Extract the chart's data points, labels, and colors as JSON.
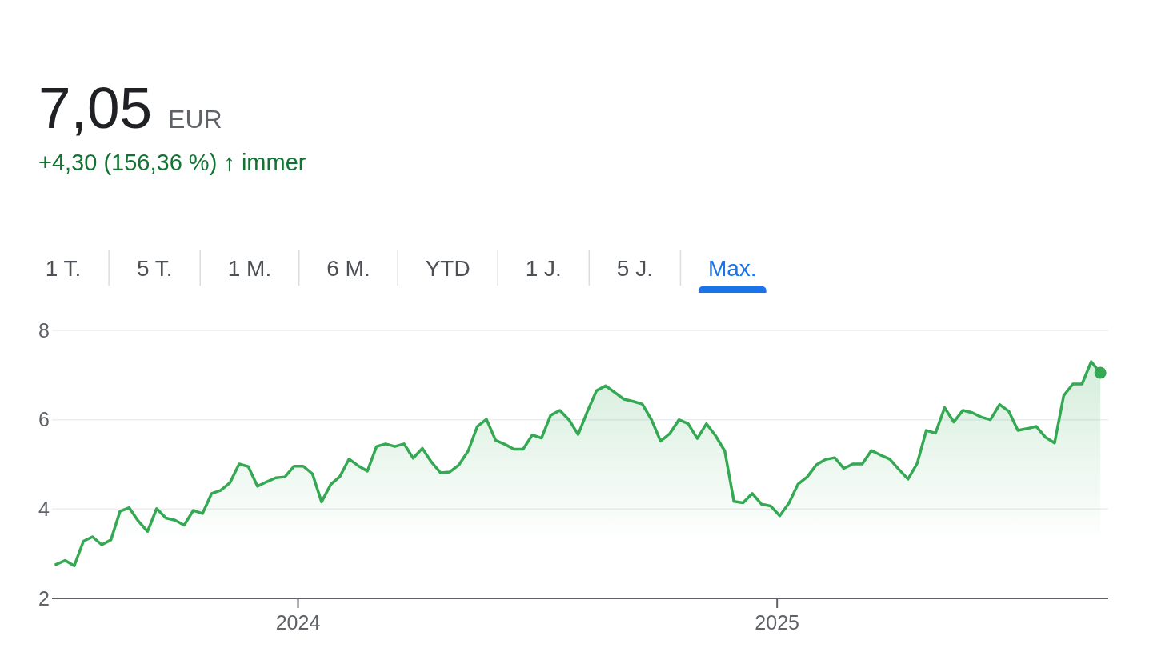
{
  "chart_data": {
    "type": "area",
    "title": "7,05 EUR",
    "subtitle": "+4,30 (156,36 %) ↑ immer",
    "annotations": [
      "1 T.",
      "5 T.",
      "1 M.",
      "6 M.",
      "YTD",
      "1 J.",
      "5 J.",
      "Max."
    ],
    "x": [
      "2023-06-30",
      "2023-07-07",
      "2023-07-14",
      "2023-07-21",
      "2023-07-28",
      "2023-08-04",
      "2023-08-11",
      "2023-08-18",
      "2023-08-25",
      "2023-09-01",
      "2023-09-08",
      "2023-09-15",
      "2023-09-22",
      "2023-09-29",
      "2023-10-06",
      "2023-10-13",
      "2023-10-20",
      "2023-10-27",
      "2023-11-03",
      "2023-11-10",
      "2023-11-17",
      "2023-11-24",
      "2023-12-01",
      "2023-12-08",
      "2023-12-15",
      "2023-12-22",
      "2023-12-29",
      "2024-01-05",
      "2024-01-12",
      "2024-01-19",
      "2024-01-26",
      "2024-02-02",
      "2024-02-09",
      "2024-02-16",
      "2024-02-23",
      "2024-03-01",
      "2024-03-08",
      "2024-03-15",
      "2024-03-22",
      "2024-03-29",
      "2024-04-05",
      "2024-04-12",
      "2024-04-19",
      "2024-04-26",
      "2024-05-03",
      "2024-05-10",
      "2024-05-17",
      "2024-05-24",
      "2024-05-31",
      "2024-06-07",
      "2024-06-14",
      "2024-06-21",
      "2024-06-28",
      "2024-07-05",
      "2024-07-12",
      "2024-07-19",
      "2024-07-26",
      "2024-08-02",
      "2024-08-09",
      "2024-08-16",
      "2024-08-23",
      "2024-08-30",
      "2024-09-06",
      "2024-09-13",
      "2024-09-20",
      "2024-09-27",
      "2024-10-04",
      "2024-10-11",
      "2024-10-18",
      "2024-10-25",
      "2024-11-01",
      "2024-11-08",
      "2024-11-15",
      "2024-11-22",
      "2024-11-29",
      "2024-12-06",
      "2024-12-13",
      "2024-12-20",
      "2024-12-27",
      "2025-01-03",
      "2025-01-10",
      "2025-01-17",
      "2025-01-24",
      "2025-01-31",
      "2025-02-07",
      "2025-02-14",
      "2025-02-21",
      "2025-02-28",
      "2025-03-07",
      "2025-03-14",
      "2025-03-21",
      "2025-03-28",
      "2025-04-04",
      "2025-04-11",
      "2025-04-18",
      "2025-04-25",
      "2025-05-02",
      "2025-05-09",
      "2025-05-16",
      "2025-05-23",
      "2025-05-30",
      "2025-06-06",
      "2025-06-13",
      "2025-06-20",
      "2025-06-27",
      "2025-07-04",
      "2025-07-11",
      "2025-07-18",
      "2025-07-25",
      "2025-08-01",
      "2025-08-08",
      "2025-08-15",
      "2025-08-22",
      "2025-08-29",
      "2025-09-05"
    ],
    "series": [
      {
        "color": "#34a853",
        "values": [
          2.76,
          2.85,
          2.73,
          3.28,
          3.38,
          3.2,
          3.31,
          3.95,
          4.03,
          3.73,
          3.5,
          4.01,
          3.8,
          3.75,
          3.64,
          3.97,
          3.9,
          4.35,
          4.42,
          4.59,
          5.01,
          4.95,
          4.51,
          4.61,
          4.7,
          4.72,
          4.96,
          4.96,
          4.79,
          4.16,
          4.55,
          4.73,
          5.12,
          4.97,
          4.85,
          5.4,
          5.46,
          5.4,
          5.46,
          5.14,
          5.36,
          5.05,
          4.81,
          4.83,
          4.99,
          5.3,
          5.85,
          6.01,
          5.54,
          5.45,
          5.34,
          5.34,
          5.66,
          5.59,
          6.1,
          6.21,
          6.0,
          5.67,
          6.18,
          6.65,
          6.76,
          6.61,
          6.46,
          6.41,
          6.35,
          6.0,
          5.52,
          5.69,
          6.0,
          5.91,
          5.58,
          5.91,
          5.64,
          5.3,
          4.17,
          4.14,
          4.35,
          4.11,
          4.07,
          3.85,
          4.13,
          4.56,
          4.72,
          4.99,
          5.11,
          5.15,
          4.91,
          5.01,
          5.01,
          5.31,
          5.21,
          5.12,
          4.89,
          4.67,
          5.02,
          5.76,
          5.7,
          6.27,
          5.95,
          6.21,
          6.16,
          6.06,
          6.0,
          6.34,
          6.19,
          5.76,
          5.8,
          5.85,
          5.61,
          5.48,
          6.54,
          6.8,
          6.8,
          7.3,
          7.05
        ]
      },
      {
        "type": "scatter",
        "color": "#34a853",
        "x": [
          "2025-09-05"
        ],
        "values": [
          7.05
        ]
      }
    ],
    "xlim": [
      "2023-06-27",
      "2025-09-11"
    ],
    "xticks": [
      {
        "value": "2024-01-01",
        "label": "2024"
      },
      {
        "value": "2025-01-01",
        "label": "2025"
      }
    ],
    "ylim": [
      2,
      8
    ],
    "yticks": [
      2,
      4,
      6,
      8
    ],
    "grid": "y"
  }
}
